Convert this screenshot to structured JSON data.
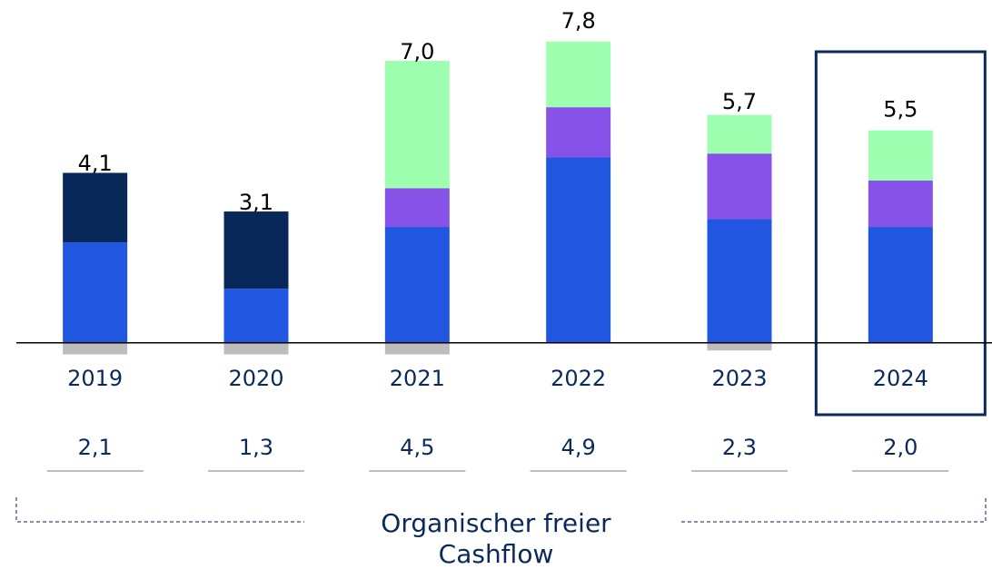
{
  "chart_data": {
    "type": "bar",
    "stacked": true,
    "categories": [
      "2019",
      "2020",
      "2021",
      "2022",
      "2023",
      "2024"
    ],
    "series": [
      {
        "color": "#2157e0",
        "values": [
          2.6,
          1.4,
          3.0,
          4.8,
          3.2,
          3.0
        ]
      },
      {
        "color": "#8752e8",
        "values": [
          null,
          null,
          1.0,
          1.3,
          1.7,
          1.2
        ]
      },
      {
        "color": "#9effb1",
        "values": [
          null,
          null,
          3.3,
          1.7,
          1.0,
          1.3
        ]
      },
      {
        "color": "#08285a",
        "values": [
          1.8,
          2.0,
          null,
          null,
          null,
          null
        ]
      },
      {
        "color": "#bdbdbd",
        "values": [
          -0.3,
          -0.3,
          -0.3,
          null,
          -0.2,
          null
        ]
      }
    ],
    "totals": {
      "values": [
        4.1,
        3.1,
        7.0,
        7.8,
        5.7,
        5.5
      ],
      "value_labels": [
        "4,1",
        "3,1",
        "7,0",
        "7,8",
        "5,7",
        "5,5"
      ]
    },
    "organic_fcf": {
      "label": "Organischer freier Cashflow",
      "values": [
        2.1,
        1.3,
        4.5,
        4.9,
        2.3,
        2.0
      ],
      "value_labels": [
        "2,1",
        "1,3",
        "4,5",
        "4,9",
        "2,3",
        "2,0"
      ]
    },
    "highlight": "2024",
    "ylim": [
      -0.5,
      8.5
    ]
  }
}
